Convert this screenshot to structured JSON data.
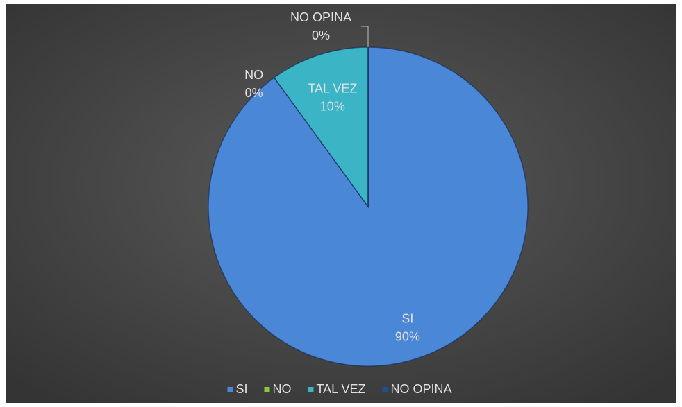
{
  "chart_data": {
    "type": "pie",
    "categories": [
      "SI",
      "NO",
      "TAL VEZ",
      "NO OPINA"
    ],
    "values": [
      90,
      0,
      10,
      0
    ],
    "value_labels": [
      "90%",
      "0%",
      "10%",
      "0%"
    ],
    "colors": [
      "#4a87d6",
      "#8cc63f",
      "#3bb4c6",
      "#1f4f8c"
    ],
    "legend": "bottom"
  }
}
